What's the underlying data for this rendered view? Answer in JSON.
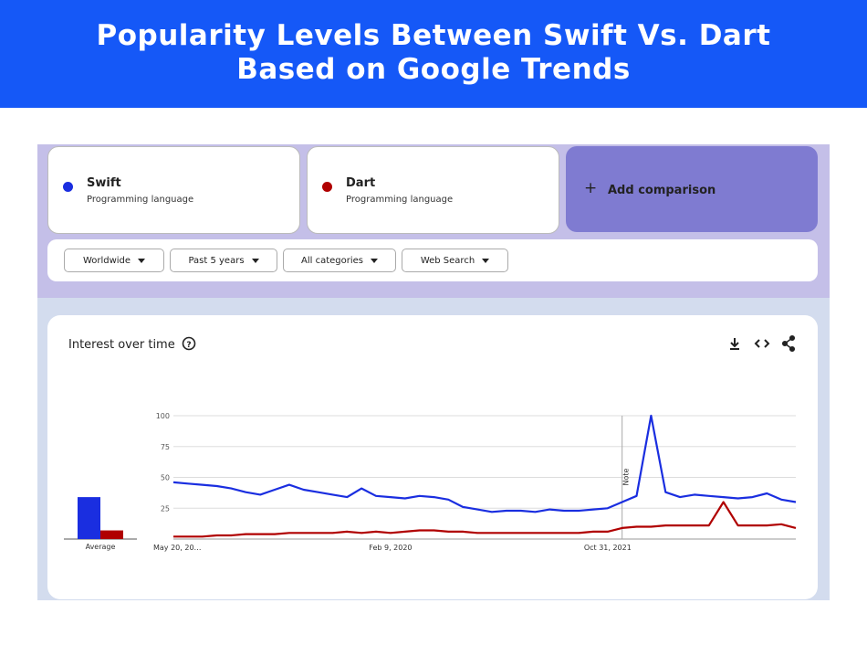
{
  "header": {
    "title_lines": [
      "Popularity Levels Between Swift Vs. Dart",
      "Based on Google Trends"
    ]
  },
  "search_terms": [
    {
      "subtitle": "Programming language"
    },
    {
      "subtitle": "Programming language"
    }
  ],
  "add_comparison": "Add comparison",
  "filters": [
    "Worldwide",
    "Past 5 years",
    "All categories",
    "Web Search"
  ],
  "chart_data": {
    "type": "line",
    "title": "Interest over time",
    "categories": [
      "May 20, 20…",
      null,
      null,
      null,
      null,
      null,
      null,
      null,
      null,
      null,
      null,
      null,
      null,
      null,
      null,
      "Feb 9, 2020",
      null,
      null,
      null,
      null,
      null,
      null,
      null,
      null,
      null,
      null,
      null,
      null,
      null,
      null,
      "Oct 31, 2021",
      null,
      null,
      null,
      null,
      null,
      null,
      null,
      null,
      null,
      null,
      null,
      null,
      null
    ],
    "series": [
      {
        "name": "Swift",
        "color": "#1a2ee0",
        "average": 34,
        "values": [
          46,
          45,
          44,
          43,
          41,
          38,
          36,
          40,
          44,
          40,
          38,
          36,
          34,
          41,
          35,
          34,
          33,
          35,
          34,
          32,
          26,
          24,
          22,
          23,
          23,
          22,
          24,
          23,
          23,
          24,
          25,
          30,
          35,
          100,
          38,
          34,
          36,
          35,
          34,
          33,
          34,
          37,
          32,
          30
        ]
      },
      {
        "name": "Dart",
        "color": "#b00000",
        "average": 7,
        "values": [
          2,
          2,
          2,
          3,
          3,
          4,
          4,
          4,
          5,
          5,
          5,
          5,
          6,
          5,
          6,
          5,
          6,
          7,
          7,
          6,
          6,
          5,
          5,
          5,
          5,
          5,
          5,
          5,
          5,
          6,
          6,
          9,
          10,
          10,
          11,
          11,
          11,
          11,
          30,
          11,
          11,
          11,
          12,
          9
        ]
      }
    ],
    "average_label": "Average",
    "annotation": {
      "label": "Note",
      "at": 31
    },
    "ylim": [
      0,
      100
    ],
    "yticks": [
      25,
      50,
      75,
      100
    ],
    "grid": true
  }
}
